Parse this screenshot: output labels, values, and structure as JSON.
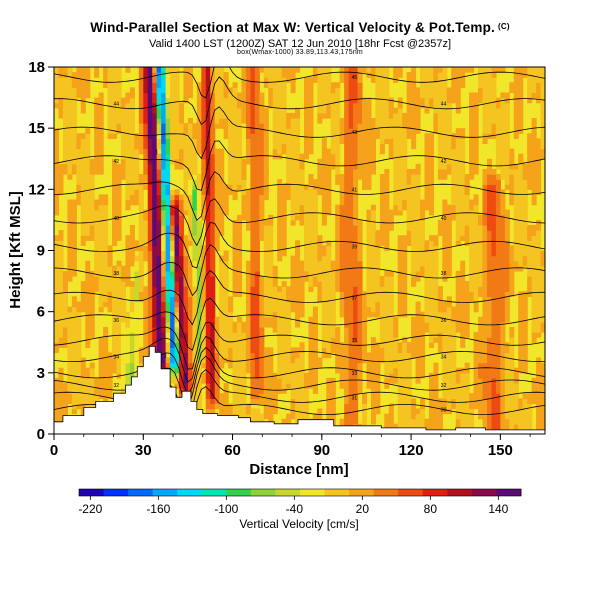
{
  "title": "Wind-Parallel Section at Max W: Vertical Velocity & Pot.Temp.",
  "title_mark": "(C)",
  "subtitle": "Valid 1400 LST (1200Z) SAT 12 Jun 2010 [18hr Fcst @2357z]",
  "subsubtitle": "box(Wmax-1000) 33.89,113.43,175nm",
  "colors": {
    "terrain": "#ffffff",
    "background_field": "#f2e62a",
    "contours": "#000000"
  },
  "chart_data": {
    "type": "heatmap",
    "xlabel": "Distance [nm]",
    "ylabel": "Height [Kft MSL]",
    "xlim": [
      0,
      165
    ],
    "ylim": [
      0,
      18
    ],
    "xticks": [
      0,
      30,
      60,
      90,
      120,
      150
    ],
    "yticks": [
      0,
      3,
      6,
      9,
      12,
      15,
      18
    ],
    "colorbar": {
      "label": "Vertical Velocity [cm/s]",
      "ticks": [
        -220,
        -160,
        -100,
        -40,
        20,
        80,
        140
      ],
      "range": [
        -230,
        160
      ],
      "colors": [
        "#1d05b5",
        "#0033ff",
        "#006bff",
        "#00a8ff",
        "#00d8f5",
        "#00e6b3",
        "#2fd44a",
        "#8fd23a",
        "#c7d82c",
        "#f2e62a",
        "#f4c421",
        "#f5a31a",
        "#f27a16",
        "#ee4b12",
        "#de1f12",
        "#b5101e",
        "#8a0a4b",
        "#5c0a75"
      ]
    },
    "terrain_profile": {
      "x": [
        0,
        3,
        3,
        10,
        10,
        14,
        14,
        20,
        20,
        24,
        24,
        26,
        26,
        28,
        28,
        30,
        30,
        32,
        32,
        34,
        34,
        36,
        36,
        39,
        39,
        41,
        41,
        43,
        43,
        46,
        46,
        48,
        48,
        50,
        50,
        55,
        55,
        62,
        62,
        66,
        66,
        74,
        74,
        82,
        82,
        94,
        94,
        110,
        110,
        125,
        125,
        135,
        135,
        145,
        145,
        165
      ],
      "height": [
        0.6,
        0.6,
        0.9,
        0.9,
        1.3,
        1.3,
        1.6,
        1.6,
        2.0,
        2.0,
        2.4,
        2.4,
        2.8,
        2.8,
        3.3,
        3.3,
        3.8,
        3.8,
        4.3,
        4.3,
        4.0,
        4.0,
        3.2,
        3.2,
        2.3,
        2.3,
        1.8,
        1.8,
        2.1,
        2.1,
        1.6,
        1.6,
        1.2,
        1.2,
        1.0,
        1.0,
        0.9,
        0.9,
        0.8,
        0.8,
        0.6,
        0.6,
        0.5,
        0.5,
        0.7,
        0.7,
        0.4,
        0.4,
        0.3,
        0.3,
        0.2,
        0.2,
        0.3,
        0.3,
        0.2,
        0.2
      ]
    },
    "w_features": [
      {
        "x": 36.0,
        "y_min": 3.5,
        "y_max": 18,
        "tilt_nm_per_kft": -0.25,
        "halfwidth_nm": 2.2,
        "w": 150
      },
      {
        "x": 40.5,
        "y_min": 3.5,
        "y_max": 18,
        "tilt_nm_per_kft": -0.35,
        "halfwidth_nm": 1.8,
        "w": -200
      },
      {
        "x": 44.0,
        "y_min": 2.5,
        "y_max": 11,
        "tilt_nm_per_kft": -0.45,
        "halfwidth_nm": 2.0,
        "w": 140
      },
      {
        "x": 53.0,
        "y_min": 2.0,
        "y_max": 18,
        "tilt_nm_per_kft": -0.1,
        "halfwidth_nm": 1.5,
        "w": 90
      },
      {
        "x": 49.0,
        "y_min": 4.0,
        "y_max": 12,
        "tilt_nm_per_kft": -0.2,
        "halfwidth_nm": 1.2,
        "w": -90
      },
      {
        "x": 26.0,
        "y_min": 2.0,
        "y_max": 8,
        "tilt_nm_per_kft": 0.3,
        "halfwidth_nm": 1.2,
        "w": -60
      },
      {
        "x": 24.0,
        "y_min": 2.5,
        "y_max": 5,
        "tilt_nm_per_kft": 0.0,
        "halfwidth_nm": 1.0,
        "w": -60
      },
      {
        "x": 68.0,
        "y_min": 2.0,
        "y_max": 18,
        "tilt_nm_per_kft": -0.05,
        "halfwidth_nm": 2.0,
        "w": 40
      },
      {
        "x": 100.0,
        "y_min": 0.5,
        "y_max": 18,
        "tilt_nm_per_kft": 0.0,
        "halfwidth_nm": 3.0,
        "w": 35
      },
      {
        "x": 148.0,
        "y_min": 0.5,
        "y_max": 12,
        "tilt_nm_per_kft": 0.0,
        "halfwidth_nm": 3.0,
        "w": 40
      }
    ],
    "theta_contours": [
      {
        "theta": 30,
        "base_height": 1.2
      },
      {
        "theta": 31,
        "base_height": 1.8
      },
      {
        "theta": 32,
        "base_height": 2.4
      },
      {
        "theta": 33,
        "base_height": 3.0
      },
      {
        "theta": 34,
        "base_height": 3.8
      },
      {
        "theta": 35,
        "base_height": 4.6
      },
      {
        "theta": 36,
        "base_height": 5.6
      },
      {
        "theta": 37,
        "base_height": 6.7
      },
      {
        "theta": 38,
        "base_height": 7.9
      },
      {
        "theta": 39,
        "base_height": 9.2
      },
      {
        "theta": 40,
        "base_height": 10.6
      },
      {
        "theta": 41,
        "base_height": 12.0
      },
      {
        "theta": 42,
        "base_height": 13.4
      },
      {
        "theta": 43,
        "base_height": 14.8
      },
      {
        "theta": 44,
        "base_height": 16.2
      },
      {
        "theta": 45,
        "base_height": 17.5
      }
    ]
  }
}
